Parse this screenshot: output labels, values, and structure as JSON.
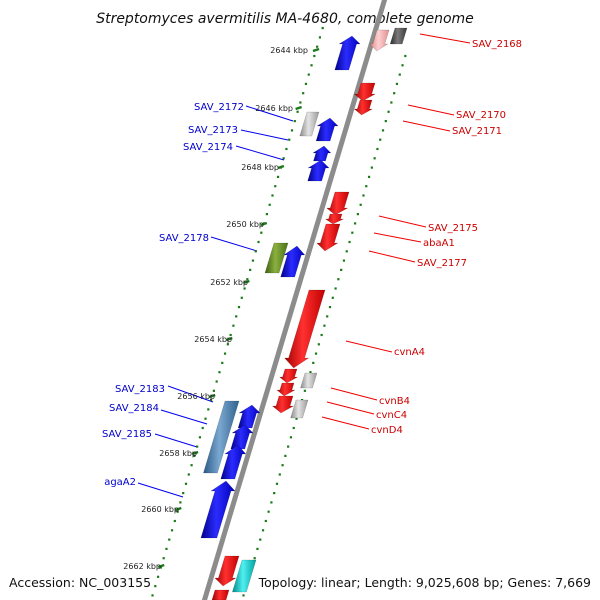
{
  "title": "Streptomyces avermitilis MA-4680, complete genome",
  "footer": {
    "accession": "Accession: NC_003155",
    "summary": "Topology: linear; Length: 9,025,608 bp; Genes: 7,669"
  },
  "colors": {
    "forward": "#0000ee",
    "reverse": "#ee0000",
    "backbone": "#8c8c8c",
    "tick": "#1a7a1a",
    "gray": "#b8b8b8",
    "dark_gray": "#505050",
    "olive": "#5f8a1e",
    "steel": "#4a80b0",
    "cyan": "#00c0c0"
  },
  "ticks": [
    {
      "label": "2644 kbp"
    },
    {
      "label": "2646 kbp"
    },
    {
      "label": "2648 kbp"
    },
    {
      "label": "2650 kbp"
    },
    {
      "label": "2652 kbp"
    },
    {
      "label": "2654 kbp"
    },
    {
      "label": "2656 kbp"
    },
    {
      "label": "2658 kbp"
    },
    {
      "label": "2660 kbp"
    },
    {
      "label": "2662 kbp"
    }
  ],
  "labels_left": [
    {
      "text": "SAV_2172"
    },
    {
      "text": "SAV_2173"
    },
    {
      "text": "SAV_2174"
    },
    {
      "text": "SAV_2178"
    },
    {
      "text": "SAV_2183"
    },
    {
      "text": "SAV_2184"
    },
    {
      "text": "SAV_2185"
    },
    {
      "text": "agaA2"
    }
  ],
  "labels_right": [
    {
      "text": "SAV_2168"
    },
    {
      "text": "SAV_2170"
    },
    {
      "text": "SAV_2171"
    },
    {
      "text": "SAV_2175"
    },
    {
      "text": "abaA1"
    },
    {
      "text": "SAV_2177"
    },
    {
      "text": "cvnA4"
    },
    {
      "text": "cvnB4"
    },
    {
      "text": "cvnC4"
    },
    {
      "text": "cvnD4"
    }
  ]
}
